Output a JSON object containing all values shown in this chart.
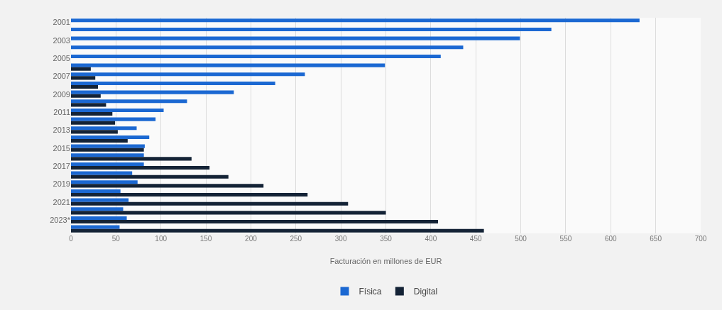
{
  "chart_data": {
    "type": "bar",
    "orientation": "horizontal",
    "xlabel": "Facturación en millones de EUR",
    "categories": [
      "2001",
      null,
      "2003",
      null,
      "2005",
      null,
      "2007",
      null,
      "2009",
      null,
      "2011",
      null,
      "2013",
      null,
      "2015",
      null,
      "2017",
      null,
      "2019",
      null,
      "2021",
      null,
      "2023*",
      null
    ],
    "series": [
      {
        "name": "Física",
        "color": "#1b68d2",
        "values": [
          632,
          534,
          499,
          436,
          411,
          349,
          260,
          227,
          181,
          129,
          103,
          94,
          73,
          87,
          82,
          81,
          81,
          68,
          74,
          55,
          64,
          58,
          62,
          54
        ]
      },
      {
        "name": "Digital",
        "color": "#142336",
        "values": [
          null,
          null,
          null,
          null,
          null,
          22,
          27,
          30,
          33,
          39,
          46,
          49,
          52,
          63,
          81,
          134,
          154,
          175,
          214,
          263,
          308,
          350,
          408,
          459
        ]
      }
    ],
    "xlim": [
      0,
      700
    ],
    "xticks": [
      0,
      50,
      100,
      150,
      200,
      250,
      300,
      350,
      400,
      450,
      500,
      550,
      600,
      650,
      700
    ],
    "grid": "x",
    "legend": "bottom"
  }
}
